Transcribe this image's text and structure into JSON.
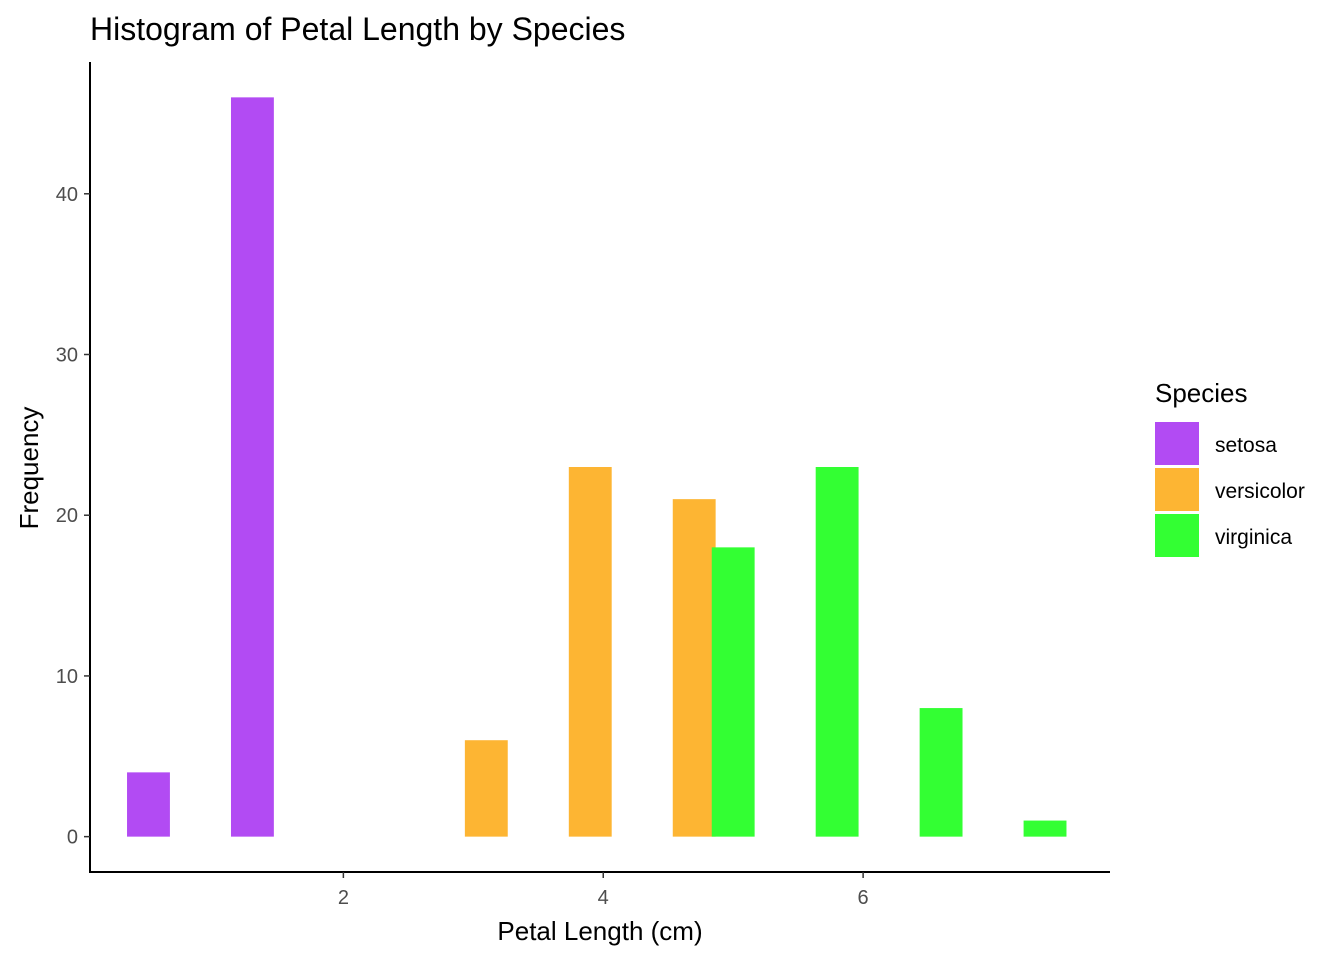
{
  "chart_data": {
    "type": "bar",
    "title": "Histogram of Petal Length by Species",
    "xlabel": "Petal Length (cm)",
    "ylabel": "Frequency",
    "xlim": [
      0.05,
      7.9
    ],
    "ylim": [
      -2.2,
      48.2
    ],
    "x_ticks": [
      2,
      4,
      6
    ],
    "y_ticks": [
      0,
      10,
      20,
      30,
      40
    ],
    "bin_width": 0.33,
    "grid": false,
    "legend": {
      "title": "Species",
      "placement": "right"
    },
    "series": [
      {
        "name": "setosa",
        "color": "#B24BF3",
        "bins": [
          {
            "x": 0.5,
            "y": 4
          },
          {
            "x": 1.3,
            "y": 46
          }
        ]
      },
      {
        "name": "versicolor",
        "color": "#FDB533",
        "bins": [
          {
            "x": 3.1,
            "y": 6
          },
          {
            "x": 3.9,
            "y": 23
          },
          {
            "x": 4.7,
            "y": 21
          }
        ]
      },
      {
        "name": "virginica",
        "color": "#33FF33",
        "bins": [
          {
            "x": 5.0,
            "y": 18
          },
          {
            "x": 5.8,
            "y": 23
          },
          {
            "x": 6.6,
            "y": 8
          },
          {
            "x": 7.4,
            "y": 1
          }
        ]
      }
    ]
  }
}
